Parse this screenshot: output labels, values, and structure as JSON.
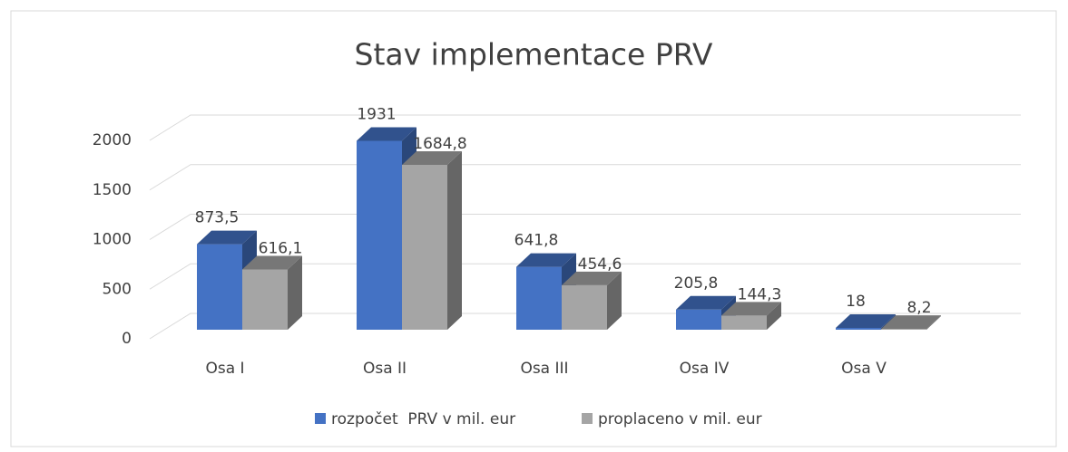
{
  "chart_data": {
    "type": "bar3d",
    "title": "Stav implementace PRV",
    "categories": [
      "Osa I",
      "Osa II",
      "Osa III",
      "Osa IV",
      "Osa V"
    ],
    "series": [
      {
        "name": "rozpočet  PRV v mil. eur",
        "color": "#4472c4",
        "values": [
          873.5,
          1931,
          641.8,
          205.8,
          18
        ],
        "value_labels": [
          "873,5",
          "1931",
          "641,8",
          "205,8",
          "18"
        ]
      },
      {
        "name": "proplaceno v mil. eur",
        "color": "#a5a5a5",
        "values": [
          616.1,
          1684.8,
          454.6,
          144.3,
          8.2
        ],
        "value_labels": [
          "616,1",
          "1684,8",
          "454,6",
          "144,3",
          "8,2"
        ]
      }
    ],
    "ylim": [
      0,
      2000
    ],
    "yticks": [
      0,
      500,
      1000,
      1500,
      2000
    ],
    "grid": true,
    "legend": "bottom"
  }
}
